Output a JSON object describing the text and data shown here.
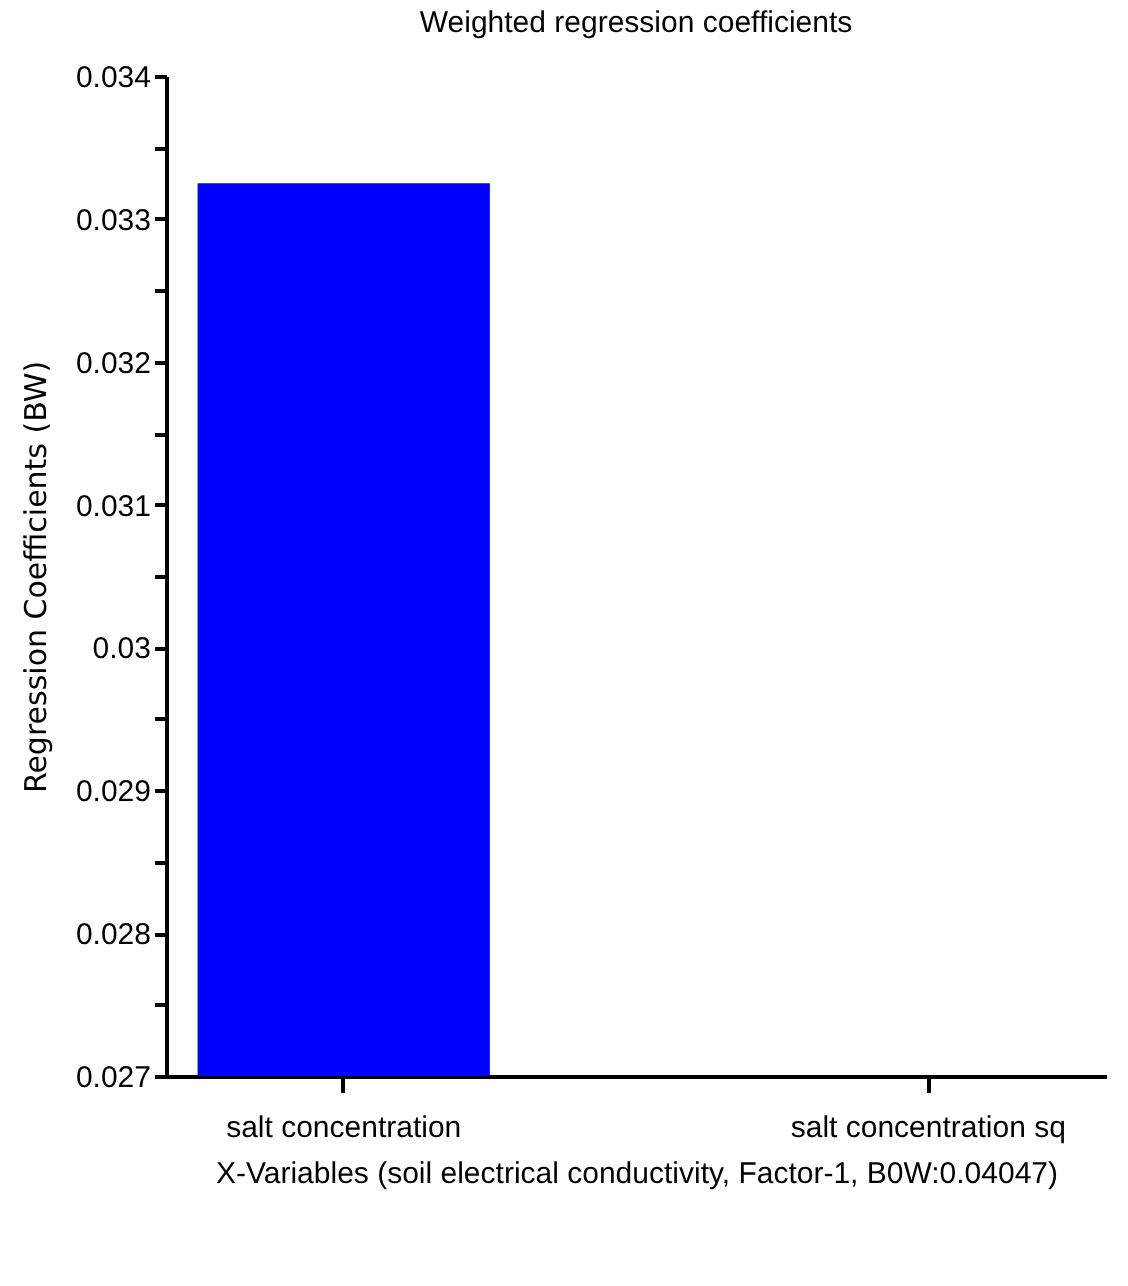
{
  "chart_data": {
    "type": "bar",
    "title": "Weighted regression coefficients",
    "xlabel": "X-Variables (soil electrical conductivity, Factor-1, B0W:0.04047)",
    "ylabel": "Regression Coefficients (BW)",
    "categories": [
      "salt concentration",
      "salt concentration sq"
    ],
    "values": [
      0.03325,
      0.027
    ],
    "color": "#0000ff",
    "ylim": [
      0.027,
      0.034
    ],
    "yticks": [
      0.027,
      {
        "value": 0.0275,
        "label": null
      },
      0.028,
      {
        "value": 0.0285,
        "label": null
      },
      0.029,
      {
        "value": 0.0295,
        "label": null
      },
      0.03,
      {
        "value": 0.0305,
        "label": null
      },
      0.031,
      {
        "value": 0.0315,
        "label": null
      },
      0.032,
      {
        "value": 0.0325,
        "label": null
      },
      0.033,
      {
        "value": 0.0335,
        "label": null
      },
      0.034
    ],
    "grid": false
  }
}
